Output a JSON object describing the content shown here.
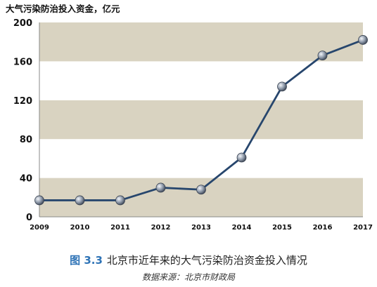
{
  "chart_data": {
    "type": "line",
    "ylabel": "大气污染防治投入资金，亿元",
    "x": [
      "2009",
      "2010",
      "2011",
      "2012",
      "2013",
      "2014",
      "2015",
      "2016",
      "2017"
    ],
    "series": [
      {
        "values": [
          17,
          17,
          17,
          30,
          28,
          61,
          134,
          166,
          182
        ]
      }
    ],
    "ylim": [
      0,
      200
    ],
    "yticks": [
      0,
      40,
      80,
      120,
      160,
      200
    ],
    "grid": "alternating horizontal bands",
    "colors": {
      "band": "#d9d3c1",
      "line": "#27466d",
      "marker": "#8f9aaa"
    }
  },
  "caption": {
    "figure_number": "图 3.3",
    "title": "北京市近年来的大气污染防治资金投入情况"
  },
  "source": "数据来源：北京市财政局"
}
